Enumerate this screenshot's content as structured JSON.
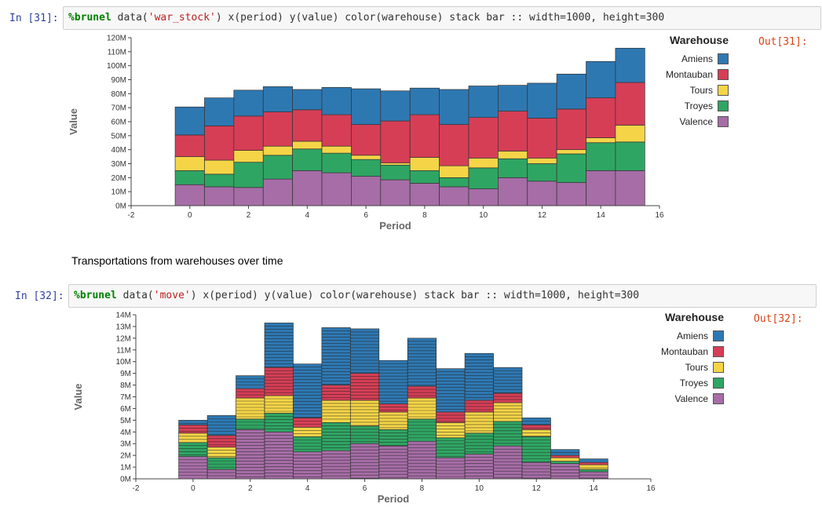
{
  "cells": [
    {
      "in_prompt": "In [31]:",
      "out_prompt": "Out[31]:",
      "code_magic": "%brunel",
      "code_text": "data(",
      "code_arg": "'war_stock'",
      "code_rest": ") x(period) y(value) color(warehouse) stack bar :: width=1000, height=300"
    },
    {
      "in_prompt": "In [32]:",
      "out_prompt": "Out[32]:",
      "code_magic": "%brunel",
      "code_text": "data(",
      "code_arg": "'move'",
      "code_rest": ") x(period) y(value) color(warehouse) stack bar :: width=1000, height=300"
    }
  ],
  "markdown": "Transportations from warehouses over time",
  "legend": {
    "title": "Warehouse",
    "items": [
      {
        "name": "Amiens",
        "color": "#2e78b2"
      },
      {
        "name": "Montauban",
        "color": "#d63e56"
      },
      {
        "name": "Tours",
        "color": "#f5d547"
      },
      {
        "name": "Troyes",
        "color": "#2fa563"
      },
      {
        "name": "Valence",
        "color": "#a66da6"
      }
    ]
  },
  "chart_data": [
    {
      "type": "bar",
      "stacked": true,
      "xlabel": "Period",
      "ylabel": "Value",
      "xlim": [
        -2,
        16
      ],
      "ylim": [
        0,
        120
      ],
      "y_unit_suffix": "M",
      "x_ticks": [
        -2,
        0,
        2,
        4,
        6,
        8,
        10,
        12,
        14,
        16
      ],
      "y_ticks": [
        0,
        10,
        20,
        30,
        40,
        50,
        60,
        70,
        80,
        90,
        100,
        110,
        120
      ],
      "x": [
        0,
        1,
        2,
        3,
        4,
        5,
        6,
        7,
        8,
        9,
        10,
        11,
        12,
        13,
        14,
        15
      ],
      "series": [
        {
          "name": "Valence",
          "values": [
            15,
            13.5,
            13,
            19,
            25,
            23.5,
            21,
            18.5,
            16,
            13.5,
            12,
            20,
            17.5,
            16.5,
            25,
            25
          ]
        },
        {
          "name": "Troyes",
          "values": [
            10,
            9,
            18,
            17,
            15.5,
            14,
            12,
            10.5,
            9,
            6.5,
            15,
            13.5,
            12.5,
            20.5,
            20,
            20.5
          ]
        },
        {
          "name": "Tours",
          "values": [
            10,
            10,
            8.5,
            6.5,
            5.5,
            5,
            3,
            1.5,
            9.5,
            8.5,
            7,
            5.5,
            4,
            3,
            3.5,
            12
          ]
        },
        {
          "name": "Montauban",
          "values": [
            15.5,
            24.5,
            24.5,
            24.5,
            22.5,
            22.5,
            22,
            30,
            30.5,
            29.5,
            29,
            28.5,
            28.5,
            29,
            28.5,
            30.5
          ]
        },
        {
          "name": "Amiens",
          "values": [
            20,
            20,
            18.5,
            18,
            14.5,
            19.5,
            25.5,
            21.5,
            19,
            25,
            22.5,
            18.5,
            25,
            25,
            26,
            24.5
          ]
        }
      ]
    },
    {
      "type": "bar",
      "stacked": true,
      "xlabel": "Period",
      "ylabel": "Value",
      "xlim": [
        -2,
        16
      ],
      "ylim": [
        0,
        14
      ],
      "y_unit_suffix": "M",
      "x_ticks": [
        -2,
        0,
        2,
        4,
        6,
        8,
        10,
        12,
        14,
        16
      ],
      "y_ticks": [
        0,
        1,
        2,
        3,
        4,
        5,
        6,
        7,
        8,
        9,
        10,
        11,
        12,
        13,
        14
      ],
      "x": [
        0,
        1,
        2,
        3,
        4,
        5,
        6,
        7,
        8,
        9,
        10,
        11,
        12,
        13,
        14
      ],
      "series": [
        {
          "name": "Valence",
          "values": [
            1.9,
            0.8,
            4.2,
            4.0,
            2.3,
            2.4,
            3.0,
            2.8,
            3.2,
            1.8,
            2.1,
            2.8,
            1.4,
            1.3,
            0.6
          ]
        },
        {
          "name": "Troyes",
          "values": [
            1.2,
            1.0,
            0.9,
            1.6,
            1.3,
            2.4,
            1.5,
            1.4,
            1.9,
            1.7,
            1.8,
            2.1,
            2.2,
            0.2,
            0.2
          ]
        },
        {
          "name": "Tours",
          "values": [
            0.8,
            0.9,
            1.8,
            1.5,
            0.8,
            1.9,
            2.2,
            1.5,
            1.8,
            1.3,
            1.8,
            1.6,
            0.6,
            0.3,
            0.4
          ]
        },
        {
          "name": "Montauban",
          "values": [
            0.7,
            1.0,
            0.8,
            2.4,
            0.8,
            1.3,
            2.3,
            0.7,
            1.0,
            0.9,
            1.0,
            0.8,
            0.4,
            0.2,
            0.2
          ]
        },
        {
          "name": "Amiens",
          "values": [
            0.4,
            1.7,
            1.1,
            3.8,
            4.6,
            4.9,
            3.8,
            3.7,
            4.1,
            3.7,
            4.0,
            2.2,
            0.6,
            0.5,
            0.3
          ]
        }
      ]
    }
  ]
}
